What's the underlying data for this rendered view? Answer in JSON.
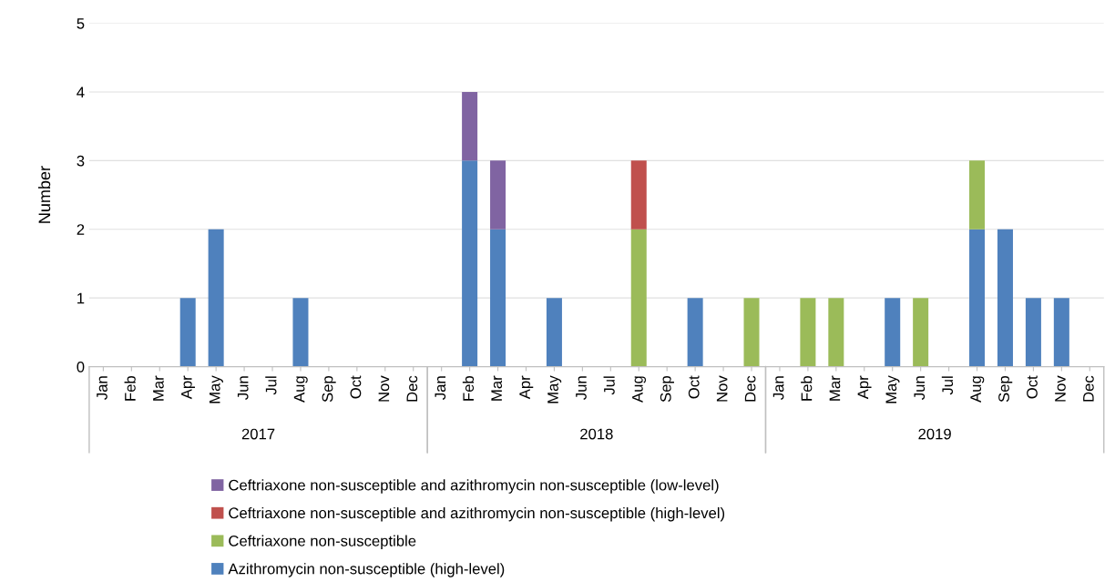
{
  "chart_data": {
    "type": "bar",
    "stacked": true,
    "ylabel": "Number",
    "categories": [
      "Jan",
      "Feb",
      "Mar",
      "Apr",
      "May",
      "Jun",
      "Jul",
      "Aug",
      "Sep",
      "Oct",
      "Nov",
      "Dec",
      "Jan",
      "Feb",
      "Mar",
      "Apr",
      "May",
      "Jun",
      "Jul",
      "Aug",
      "Sep",
      "Oct",
      "Nov",
      "Dec",
      "Jan",
      "Feb",
      "Mar",
      "Apr",
      "May",
      "Jun",
      "Jul",
      "Aug",
      "Sep",
      "Oct",
      "Nov",
      "Dec"
    ],
    "annotations": [
      "2017",
      "2018",
      "2019"
    ],
    "series": [
      {
        "name": "Azithromycin non-susceptible (high-level)",
        "color": "#4f81bd",
        "values": [
          null,
          null,
          null,
          1,
          2,
          null,
          null,
          1,
          null,
          null,
          null,
          null,
          null,
          3,
          2,
          null,
          1,
          null,
          null,
          null,
          null,
          1,
          null,
          null,
          null,
          null,
          null,
          null,
          1,
          null,
          null,
          2,
          2,
          1,
          1,
          null
        ]
      },
      {
        "name": "Ceftriaxone non-susceptible",
        "color": "#9bbb59",
        "values": [
          null,
          null,
          null,
          null,
          null,
          null,
          null,
          null,
          null,
          null,
          null,
          null,
          null,
          null,
          null,
          null,
          null,
          null,
          null,
          2,
          null,
          null,
          null,
          1,
          null,
          1,
          1,
          null,
          null,
          1,
          null,
          1,
          null,
          null,
          null,
          null
        ]
      },
      {
        "name": "Ceftriaxone non-susceptible and azithromycin non-susceptible (high-level)",
        "color": "#c0504d",
        "values": [
          null,
          null,
          null,
          null,
          null,
          null,
          null,
          null,
          null,
          null,
          null,
          null,
          null,
          null,
          null,
          null,
          null,
          null,
          null,
          1,
          null,
          null,
          null,
          null,
          null,
          null,
          null,
          null,
          null,
          null,
          null,
          null,
          null,
          null,
          null,
          null
        ]
      },
      {
        "name": "Ceftriaxone non-susceptible and azithromycin non-susceptible (low-level)",
        "color": "#8064a2",
        "values": [
          null,
          null,
          null,
          null,
          null,
          null,
          null,
          null,
          null,
          null,
          null,
          null,
          null,
          1,
          1,
          null,
          null,
          null,
          null,
          null,
          null,
          null,
          null,
          null,
          null,
          null,
          null,
          null,
          null,
          null,
          null,
          null,
          null,
          null,
          null,
          null
        ]
      }
    ],
    "ylim": [
      0,
      5
    ],
    "yticks": [
      0,
      1,
      2,
      3,
      4,
      5
    ],
    "grid": "y",
    "legend": "bottom"
  }
}
